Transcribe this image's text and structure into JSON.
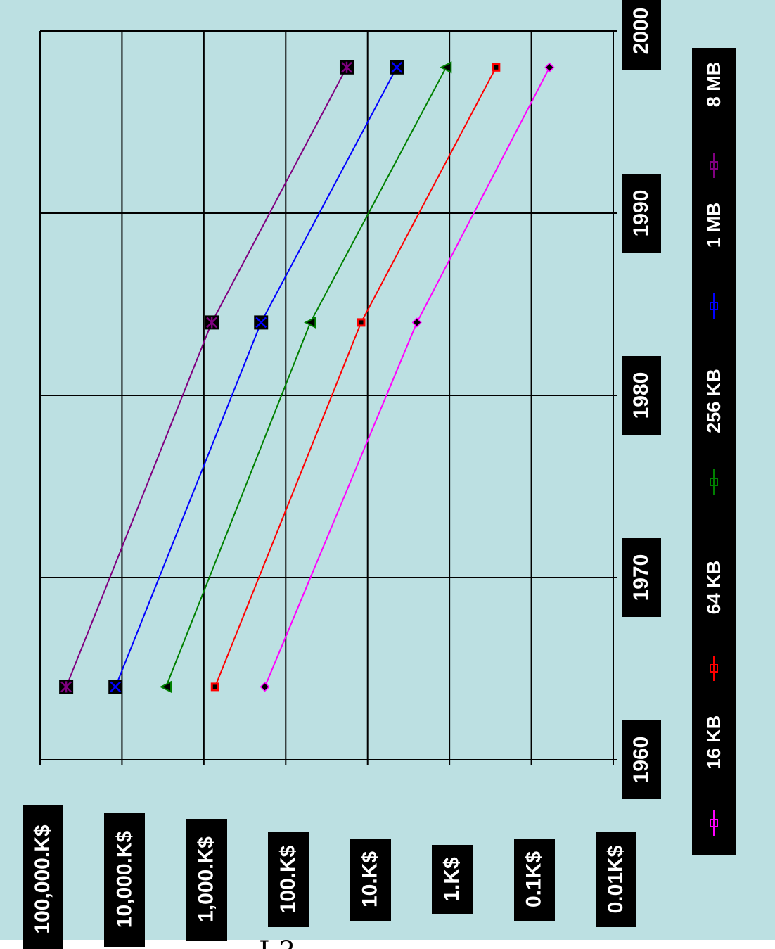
{
  "colors": {
    "background": "#bce0e2",
    "grid": "#000000",
    "label_box": "#000000",
    "label_text": "#ffffff"
  },
  "footer": {
    "glyphs": "I ?"
  },
  "chart_data": {
    "type": "line",
    "orientation": "rotated -90deg",
    "x": [
      1964,
      1984,
      1998
    ],
    "xlim": [
      1960,
      2000
    ],
    "x_ticks": [
      "1960",
      "1970",
      "1980",
      "1990",
      "2000"
    ],
    "yscale": "log",
    "ylim": [
      0.01,
      100000
    ],
    "y_tick_values": [
      100000,
      10000,
      1000,
      100,
      10,
      1,
      0.1,
      0.01
    ],
    "y_ticks": [
      "100,000.K$",
      "10,000.K$",
      "1,000.K$",
      "100.K$",
      "10.K$",
      "1.K$",
      "0.1K$",
      "0.01K$"
    ],
    "grid": true,
    "legend_position": "right",
    "series": [
      {
        "name": "16 KB",
        "color": "#ff00ff",
        "marker": "diamond",
        "values": [
          180,
          2.5,
          0.06
        ]
      },
      {
        "name": "64 KB",
        "color": "#ff0000",
        "marker": "square",
        "values": [
          730,
          12,
          0.27
        ]
      },
      {
        "name": "256 KB",
        "color": "#008000",
        "marker": "triangle",
        "values": [
          2900,
          50,
          1.1
        ]
      },
      {
        "name": "1 MB",
        "color": "#0000ff",
        "marker": "x",
        "values": [
          12000,
          200,
          4.4
        ]
      },
      {
        "name": "8 MB",
        "color": "#800080",
        "marker": "star",
        "values": [
          48000,
          800,
          18
        ]
      }
    ]
  }
}
